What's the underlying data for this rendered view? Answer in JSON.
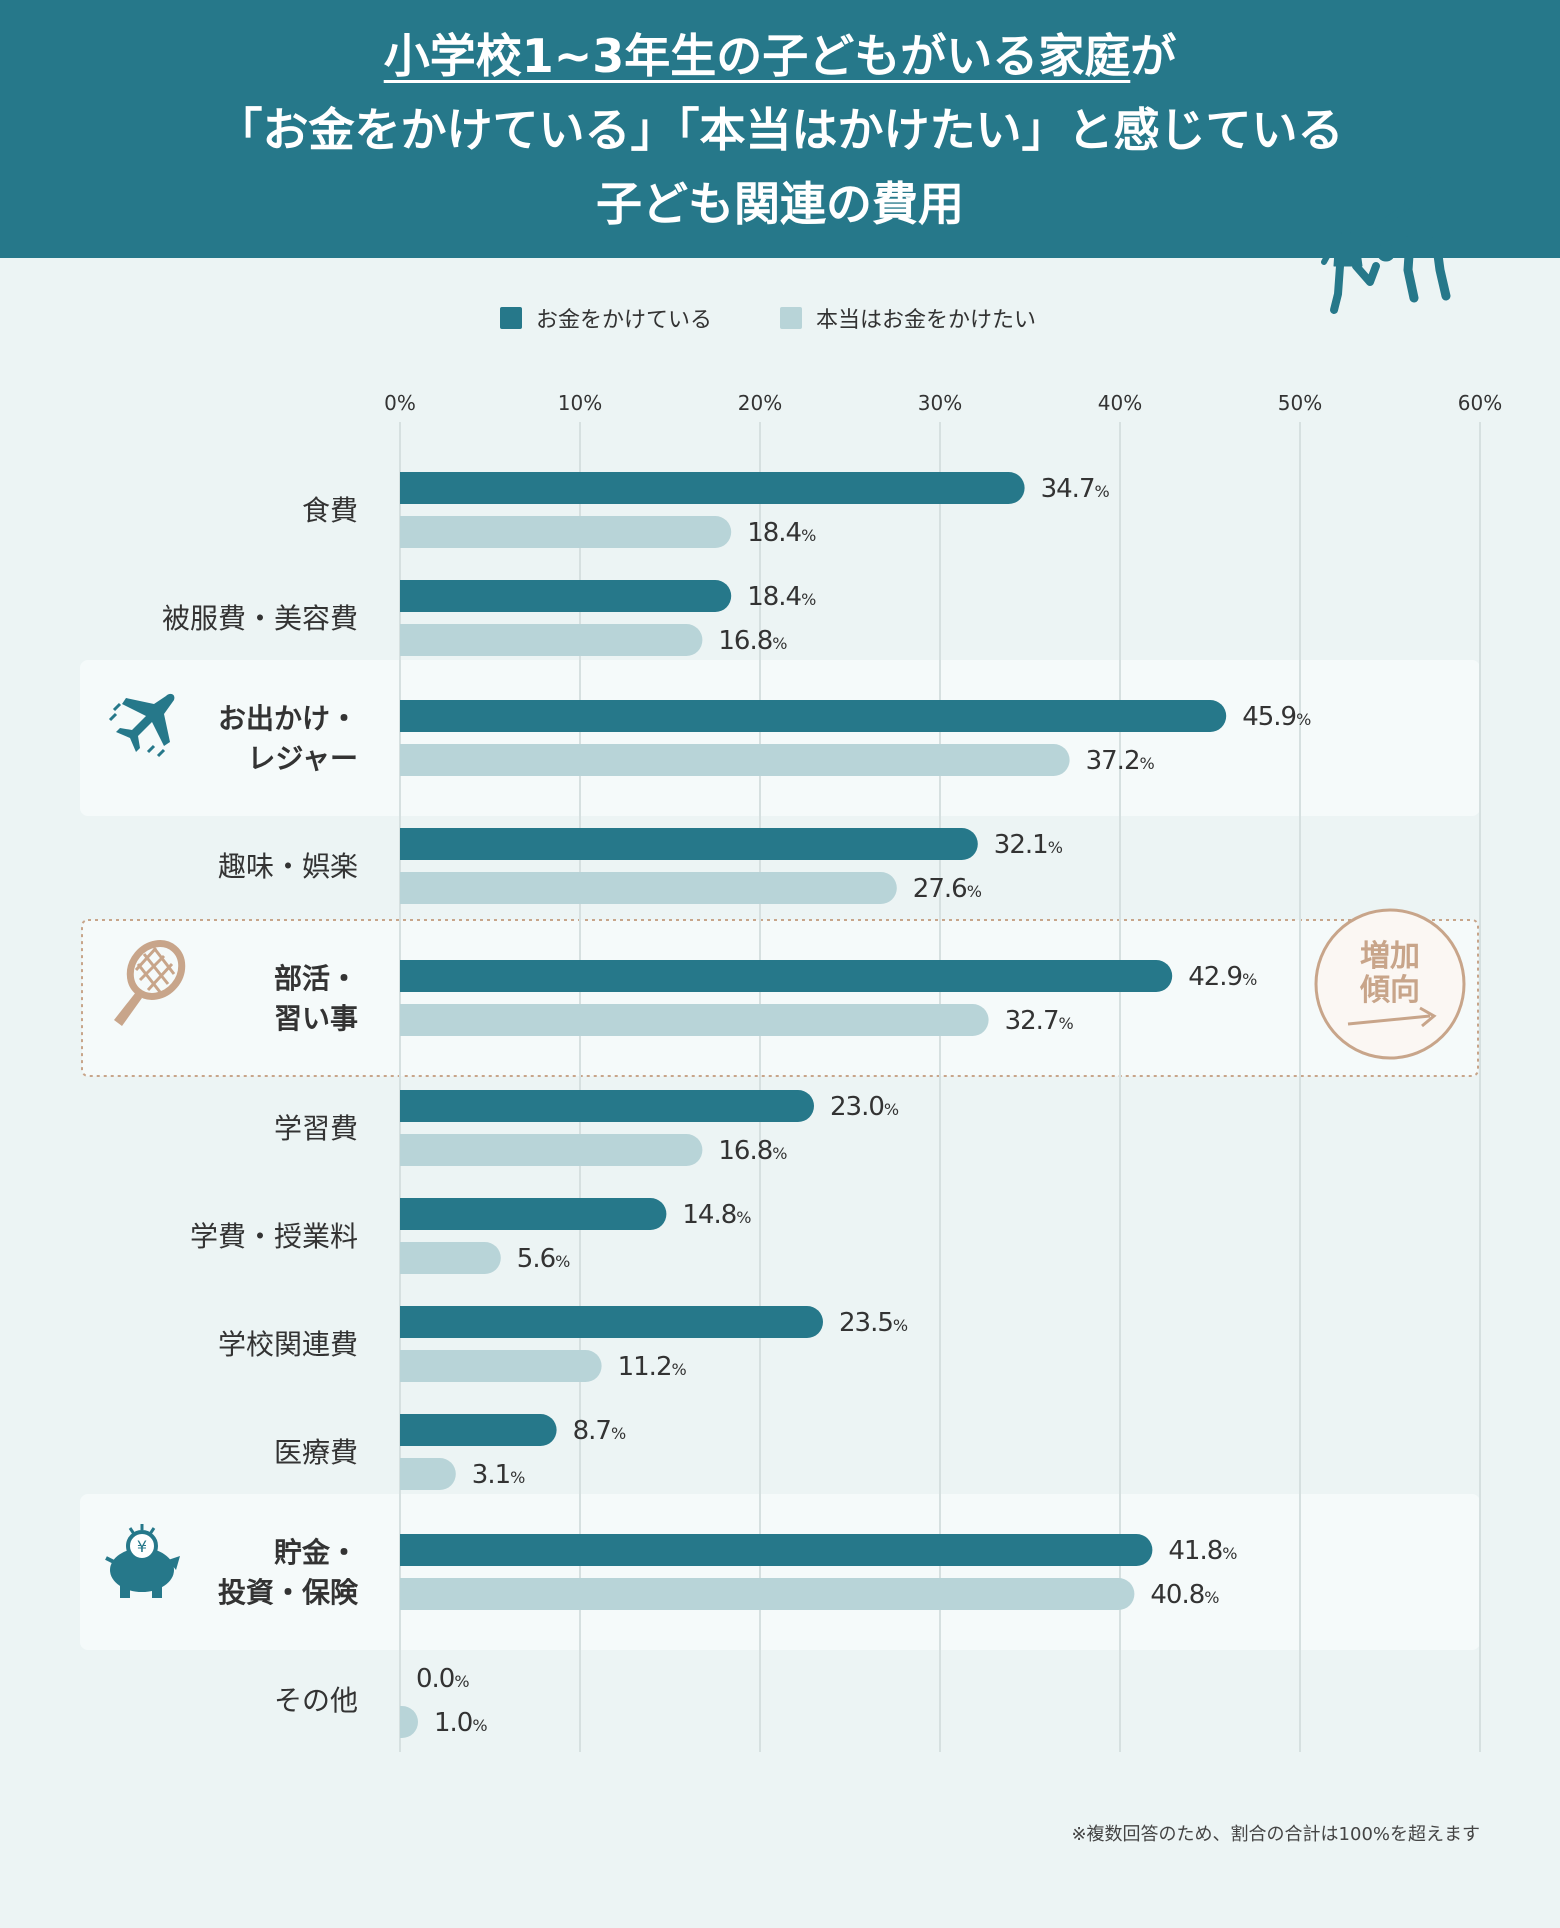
{
  "title": {
    "line1_underlined": "小学校1~3年生の子どもがいる家庭",
    "line1_rest": "が",
    "line2": "「お金をかけている」「本当はかけたい」と感じている",
    "line3": "子ども関連の費用"
  },
  "legend": [
    {
      "label": "お金をかけている",
      "color": "#26788a"
    },
    {
      "label": "本当はお金をかけたい",
      "color": "#b8d4d8"
    }
  ],
  "colors": {
    "series1": "#26788a",
    "series2": "#b8d4d8",
    "grid": "#d6e0e0",
    "highlight_bg": "#f5fafa",
    "accent": "#c8a58a"
  },
  "chart_data": {
    "type": "bar",
    "orientation": "horizontal",
    "x_ticks": [
      "0%",
      "10%",
      "20%",
      "30%",
      "40%",
      "50%",
      "60%"
    ],
    "xlim": [
      0,
      60
    ],
    "grid": true,
    "legend_position": "top-center",
    "categories": [
      [
        "食費"
      ],
      [
        "被服費・美容費"
      ],
      [
        "お出かけ・",
        "レジャー"
      ],
      [
        "趣味・娯楽"
      ],
      [
        "部活・",
        "習い事"
      ],
      [
        "学習費"
      ],
      [
        "学費・授業料"
      ],
      [
        "学校関連費"
      ],
      [
        "医療費"
      ],
      [
        "貯金・",
        "投資・保険"
      ],
      [
        "その他"
      ]
    ],
    "highlighted": [
      2,
      4,
      9
    ],
    "series": [
      {
        "name": "お金をかけている",
        "values": [
          34.7,
          18.4,
          45.9,
          32.1,
          42.9,
          23.0,
          14.8,
          23.5,
          8.7,
          41.8,
          0.0
        ]
      },
      {
        "name": "本当はお金をかけたい",
        "values": [
          18.4,
          16.8,
          37.2,
          27.6,
          32.7,
          16.8,
          5.6,
          11.2,
          3.1,
          40.8,
          1.0
        ]
      }
    ],
    "value_labels": [
      [
        "34.7",
        "18.4"
      ],
      [
        "18.4",
        "16.8"
      ],
      [
        "45.9",
        "37.2"
      ],
      [
        "32.1",
        "27.6"
      ],
      [
        "42.9",
        "32.7"
      ],
      [
        "23.0",
        "16.8"
      ],
      [
        "14.8",
        "5.6"
      ],
      [
        "23.5",
        "11.2"
      ],
      [
        "8.7",
        "3.1"
      ],
      [
        "41.8",
        "40.8"
      ],
      [
        "0.0",
        "1.0"
      ]
    ],
    "unit": "%",
    "stamp": [
      "増加",
      "傾向"
    ],
    "stamp_row": 4
  },
  "icons": {
    "header": "soccer-players-icon",
    "row2": "airplane-icon",
    "row4": "tennis-racket-icon",
    "row9": "piggy-bank-icon"
  },
  "footnote": "※複数回答のため、割合の合計は100%を超えます"
}
